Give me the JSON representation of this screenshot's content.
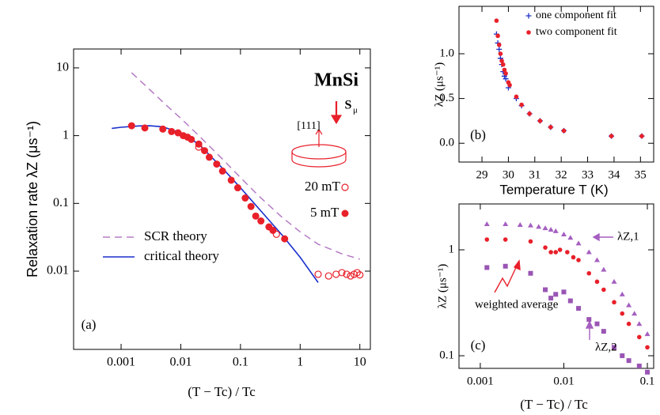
{
  "chart_data": [
    {
      "type": "scatter",
      "panel": "(a)",
      "xlabel": "(T − Tc) / Tc",
      "ylabel": "Relaxation rate λZ (μs⁻¹)",
      "xlog": true,
      "ylog": true,
      "xlim": [
        0.00016,
        15
      ],
      "ylim": [
        0.0007,
        19
      ],
      "xticks": [
        0.001,
        0.01,
        0.1,
        1,
        10
      ],
      "yticks": [
        0.01,
        0.1,
        1,
        10
      ],
      "annotations": [
        "MnSi",
        "S",
        "μ",
        "[111]"
      ],
      "series": [
        {
          "name": "SCR theory",
          "color": "#b57cc4",
          "marker": "dashed",
          "x": [
            0.0015,
            0.003,
            0.006,
            0.01,
            0.02,
            0.05,
            0.1,
            0.2,
            0.5,
            1,
            2,
            5,
            10
          ],
          "values": [
            8.5,
            4.8,
            2.7,
            1.8,
            1.0,
            0.45,
            0.24,
            0.13,
            0.062,
            0.038,
            0.025,
            0.018,
            0.015
          ]
        },
        {
          "name": "critical theory",
          "color": "#1a2ecc",
          "marker": "line",
          "x": [
            0.0007,
            0.001,
            0.002,
            0.003,
            0.005,
            0.01,
            0.02,
            0.05,
            0.1,
            0.2,
            0.5,
            1,
            2
          ],
          "values": [
            1.28,
            1.33,
            1.39,
            1.4,
            1.35,
            1.1,
            0.75,
            0.33,
            0.17,
            0.085,
            0.034,
            0.016,
            0.0068
          ]
        },
        {
          "name": "20 mT",
          "color": "#e8202a",
          "marker": "open-circle",
          "x": [
            0.02,
            0.4,
            2,
            3,
            4,
            5,
            6,
            7,
            8,
            9,
            10
          ],
          "values": [
            0.68,
            0.035,
            0.009,
            0.0085,
            0.009,
            0.0095,
            0.009,
            0.0085,
            0.009,
            0.0095,
            0.0088
          ]
        },
        {
          "name": "5 mT",
          "color": "#e8202a",
          "marker": "circle",
          "x": [
            0.0015,
            0.0025,
            0.005,
            0.007,
            0.009,
            0.011,
            0.013,
            0.015,
            0.02,
            0.025,
            0.03,
            0.04,
            0.05,
            0.07,
            0.09,
            0.12,
            0.15,
            0.18,
            0.22,
            0.3,
            0.35,
            0.55
          ],
          "values": [
            1.4,
            1.3,
            1.25,
            1.15,
            1.1,
            1.0,
            0.95,
            0.88,
            0.75,
            0.6,
            0.48,
            0.38,
            0.3,
            0.22,
            0.17,
            0.12,
            0.09,
            0.065,
            0.055,
            0.045,
            0.04,
            0.03
          ]
        }
      ]
    },
    {
      "type": "scatter",
      "panel": "(b)",
      "xlabel": "Temperature T (K)",
      "ylabel": "λZ (μs⁻¹)",
      "xlog": false,
      "ylog": false,
      "xlim": [
        28.13,
        35.5
      ],
      "ylim": [
        -0.21,
        1.53
      ],
      "xticks": [
        29,
        30,
        31,
        32,
        33,
        34,
        35
      ],
      "yticks": [
        {
          "value": 0,
          "label": "0.0"
        },
        0.5,
        {
          "value": 1,
          "label": "1.0"
        }
      ],
      "annotations": [],
      "series": [
        {
          "name": "one component fit",
          "color": "#1f33c8",
          "marker": "plus",
          "x": [
            29.55,
            29.6,
            29.65,
            29.7,
            29.75,
            29.8,
            29.85,
            29.9,
            30.0,
            30.3,
            30.5,
            30.8,
            31.2,
            31.6,
            32.1,
            33.9,
            35.05
          ],
          "values": [
            1.22,
            1.12,
            1.05,
            0.95,
            0.88,
            0.8,
            0.75,
            0.72,
            0.62,
            0.5,
            0.42,
            0.33,
            0.25,
            0.18,
            0.14,
            0.08,
            0.08
          ]
        },
        {
          "name": "two component fit",
          "color": "#e8202a",
          "marker": "circle-small",
          "x": [
            29.55,
            29.6,
            29.65,
            29.7,
            29.75,
            29.8,
            29.85,
            29.9,
            30.0,
            30.05,
            30.3,
            30.5,
            30.8,
            31.2,
            31.6,
            32.1,
            33.9,
            35.05
          ],
          "values": [
            1.37,
            1.2,
            1.1,
            1.0,
            0.92,
            0.88,
            0.82,
            0.78,
            0.68,
            0.65,
            0.52,
            0.43,
            0.33,
            0.25,
            0.18,
            0.14,
            0.08,
            0.08
          ]
        }
      ]
    },
    {
      "type": "scatter",
      "panel": "(c)",
      "xlabel": "(T − Tc) / Tc",
      "ylabel": "λZ (μs⁻¹)",
      "xlog": true,
      "ylog": true,
      "xlim": [
        0.000556,
        0.119
      ],
      "ylim": [
        0.076,
        2.71
      ],
      "xticks": [
        0.001,
        0.01,
        0.1
      ],
      "yticks": [
        0.1,
        1
      ],
      "annotations": [],
      "series": [
        {
          "name": "λZ,1",
          "color": "#a55fc0",
          "marker": "triangle",
          "x": [
            0.0012,
            0.002,
            0.003,
            0.004,
            0.005,
            0.006,
            0.007,
            0.008,
            0.01,
            0.012,
            0.015,
            0.02,
            0.025,
            0.03,
            0.04,
            0.05,
            0.06,
            0.07,
            0.08,
            0.1
          ],
          "values": [
            1.75,
            1.75,
            1.72,
            1.7,
            1.65,
            1.6,
            1.55,
            1.5,
            1.4,
            1.3,
            1.15,
            0.95,
            0.8,
            0.65,
            0.5,
            0.38,
            0.3,
            0.25,
            0.2,
            0.16
          ]
        },
        {
          "name": "weighted average",
          "color": "#e8202a",
          "marker": "circle-small",
          "x": [
            0.0012,
            0.002,
            0.004,
            0.006,
            0.007,
            0.008,
            0.009,
            0.011,
            0.013,
            0.015,
            0.02,
            0.025,
            0.03,
            0.04,
            0.05,
            0.06,
            0.08,
            0.1
          ],
          "values": [
            1.25,
            1.25,
            1.2,
            1.05,
            0.95,
            0.95,
            1.0,
            0.95,
            0.85,
            0.8,
            0.6,
            0.5,
            0.42,
            0.32,
            0.25,
            0.2,
            0.15,
            0.12
          ]
        },
        {
          "name": "λZ,2",
          "color": "#9a55b4",
          "marker": "square",
          "x": [
            0.0012,
            0.002,
            0.004,
            0.006,
            0.007,
            0.008,
            0.01,
            0.012,
            0.015,
            0.02,
            0.025,
            0.03,
            0.04,
            0.05,
            0.06,
            0.08,
            0.1
          ],
          "values": [
            0.68,
            0.7,
            0.6,
            0.42,
            0.35,
            0.38,
            0.4,
            0.33,
            0.28,
            0.22,
            0.2,
            0.17,
            0.12,
            0.1,
            0.09,
            0.08,
            0.07
          ]
        }
      ]
    }
  ]
}
